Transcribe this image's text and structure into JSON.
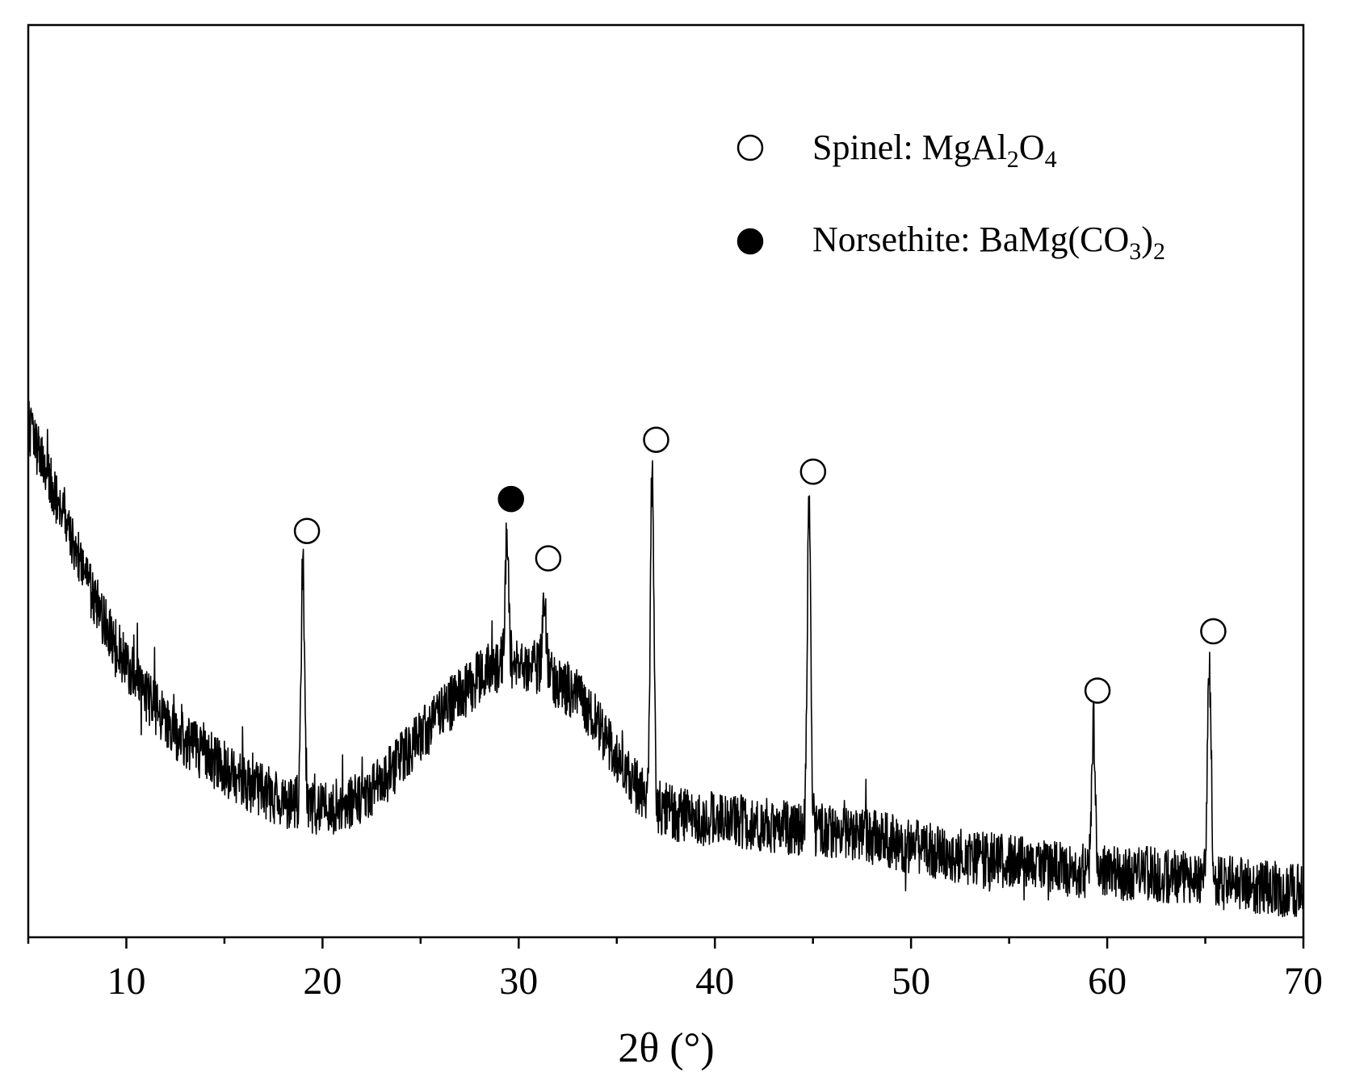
{
  "chart_data": {
    "type": "line",
    "title": "",
    "xlabel": "2θ (°)",
    "ylabel": "",
    "xlim": [
      5,
      70
    ],
    "ylim": [
      0,
      1000
    ],
    "x_ticks": [
      10,
      20,
      30,
      40,
      50,
      60,
      70
    ],
    "x_tick_labels": [
      "10",
      "20",
      "30",
      "40",
      "50",
      "60",
      "70"
    ],
    "y_ticks_visible": false,
    "grid": false,
    "line_color": "#000000",
    "background_baseline": [
      [
        5.0,
        560
      ],
      [
        6.0,
        505
      ],
      [
        7.0,
        445
      ],
      [
        8.0,
        390
      ],
      [
        9.0,
        340
      ],
      [
        10.0,
        300
      ],
      [
        11.0,
        265
      ],
      [
        12.0,
        235
      ],
      [
        13.0,
        215
      ],
      [
        14.0,
        200
      ],
      [
        15.0,
        185
      ],
      [
        16.0,
        170
      ],
      [
        17.0,
        160
      ],
      [
        18.0,
        150
      ],
      [
        19.0,
        145
      ],
      [
        20.0,
        140
      ],
      [
        21.0,
        145
      ],
      [
        22.0,
        155
      ],
      [
        23.0,
        170
      ],
      [
        24.0,
        195
      ],
      [
        25.0,
        220
      ],
      [
        26.0,
        245
      ],
      [
        27.0,
        265
      ],
      [
        28.0,
        285
      ],
      [
        29.0,
        300
      ],
      [
        30.0,
        300
      ],
      [
        31.0,
        295
      ],
      [
        32.0,
        280
      ],
      [
        33.0,
        265
      ],
      [
        34.0,
        235
      ],
      [
        35.0,
        195
      ],
      [
        36.0,
        165
      ],
      [
        37.0,
        145
      ],
      [
        38.0,
        135
      ],
      [
        39.0,
        130
      ],
      [
        40.0,
        130
      ],
      [
        42.0,
        125
      ],
      [
        44.0,
        120
      ],
      [
        46.0,
        115
      ],
      [
        48.0,
        110
      ],
      [
        50.0,
        100
      ],
      [
        52.0,
        90
      ],
      [
        54.0,
        85
      ],
      [
        56.0,
        80
      ],
      [
        58.0,
        75
      ],
      [
        60.0,
        70
      ],
      [
        62.0,
        70
      ],
      [
        64.0,
        65
      ],
      [
        66.0,
        60
      ],
      [
        68.0,
        55
      ],
      [
        70.0,
        50
      ]
    ],
    "noise_amplitude": 30,
    "peaks": [
      {
        "x": 19.0,
        "y": 410,
        "phase": "spinel"
      },
      {
        "x": 29.4,
        "y": 445,
        "phase": "norsethite"
      },
      {
        "x": 31.3,
        "y": 380,
        "phase": "spinel"
      },
      {
        "x": 36.8,
        "y": 510,
        "phase": "spinel"
      },
      {
        "x": 44.8,
        "y": 475,
        "phase": "spinel"
      },
      {
        "x": 59.3,
        "y": 235,
        "phase": "spinel"
      },
      {
        "x": 65.2,
        "y": 300,
        "phase": "spinel"
      }
    ],
    "legend": {
      "placement": "top-right",
      "entries": [
        {
          "marker": "open-circle",
          "phase": "spinel",
          "label": "Spinel: MgAl",
          "sub1": "2",
          "mid": "O",
          "sub2": "4",
          "tail": "",
          "sub3": ""
        },
        {
          "marker": "filled-circle",
          "phase": "norsethite",
          "label": "Norsethite: BaMg(CO",
          "sub1": "3",
          "mid": ")",
          "sub2": "2",
          "tail": "",
          "sub3": ""
        }
      ]
    }
  }
}
